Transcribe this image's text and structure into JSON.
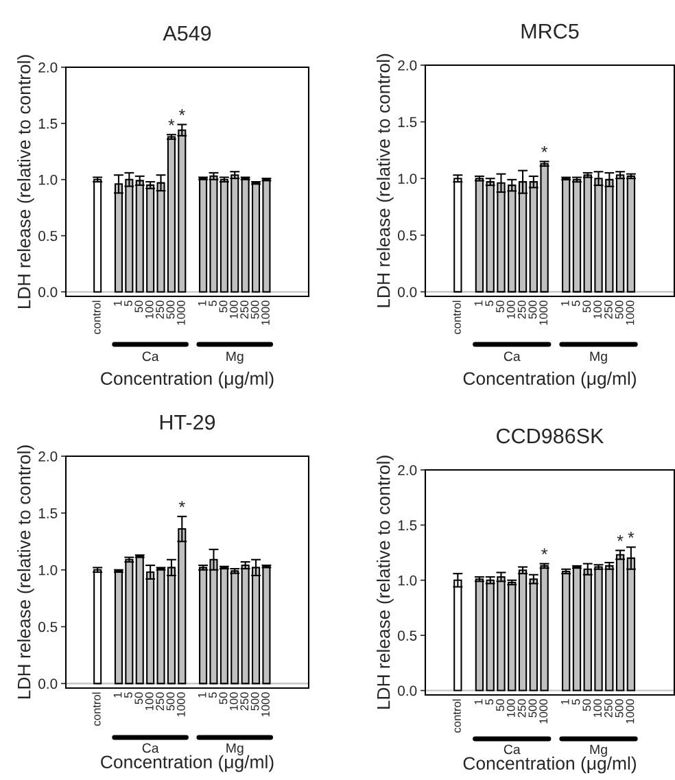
{
  "chart_data": [
    {
      "type": "bar",
      "title": "A549",
      "xlabel": "Concentration (μg/ml)",
      "ylabel": "LDH release (relative to control)",
      "categories": [
        "control",
        null,
        "1",
        "5",
        "50",
        "100",
        "250",
        "500",
        "1000",
        null,
        "1",
        "5",
        "50",
        "100",
        "250",
        "500",
        "1000"
      ],
      "colors": [
        "#ffffff",
        null,
        "#c0c0c0",
        "#c0c0c0",
        "#c0c0c0",
        "#c0c0c0",
        "#c0c0c0",
        "#c0c0c0",
        "#c0c0c0",
        null,
        "#c0c0c0",
        "#c0c0c0",
        "#c0c0c0",
        "#c0c0c0",
        "#c0c0c0",
        "#c0c0c0",
        "#c0c0c0"
      ],
      "values": [
        1.0,
        null,
        0.96,
        1.0,
        0.99,
        0.95,
        0.97,
        1.38,
        1.44,
        null,
        1.01,
        1.03,
        1.0,
        1.04,
        1.01,
        0.97,
        1.0
      ],
      "errors": [
        0.02,
        null,
        0.08,
        0.06,
        0.04,
        0.03,
        0.07,
        0.02,
        0.05,
        null,
        0.01,
        0.03,
        0.02,
        0.03,
        0.01,
        0.01,
        0.01
      ],
      "value_labels": [
        null,
        null,
        null,
        null,
        null,
        null,
        null,
        "*",
        "*",
        null,
        null,
        null,
        null,
        null,
        null,
        null,
        null
      ],
      "annotations": [
        "Ca",
        "Mg"
      ],
      "ylim": [
        -0.04,
        2.0
      ],
      "yticks": [
        {
          "value": 0,
          "label": "0.0"
        },
        {
          "value": 0.5,
          "label": "0.5"
        },
        {
          "value": 1,
          "label": "1.0"
        },
        {
          "value": 1.5,
          "label": "1.5"
        },
        {
          "value": 2,
          "label": "2.0"
        }
      ],
      "ref_lines": [
        {
          "axis": "y",
          "value": 0,
          "color": "#c0c0c0"
        }
      ]
    },
    {
      "type": "bar",
      "title": "MRC5",
      "xlabel": "Concentration (μg/ml)",
      "ylabel": "LDH release (relative to control)",
      "categories": [
        "control",
        null,
        "1",
        "5",
        "50",
        "100",
        "250",
        "500",
        "1000",
        null,
        "1",
        "5",
        "50",
        "100",
        "250",
        "500",
        "1000"
      ],
      "colors": [
        "#ffffff",
        null,
        "#c0c0c0",
        "#c0c0c0",
        "#c0c0c0",
        "#c0c0c0",
        "#c0c0c0",
        "#c0c0c0",
        "#c0c0c0",
        null,
        "#c0c0c0",
        "#c0c0c0",
        "#c0c0c0",
        "#c0c0c0",
        "#c0c0c0",
        "#c0c0c0",
        "#c0c0c0"
      ],
      "values": [
        1.0,
        null,
        1.0,
        0.97,
        0.96,
        0.94,
        0.97,
        0.97,
        1.13,
        null,
        1.0,
        0.99,
        1.03,
        1.0,
        0.99,
        1.03,
        1.02
      ],
      "errors": [
        0.03,
        null,
        0.02,
        0.03,
        0.08,
        0.05,
        0.1,
        0.05,
        0.02,
        null,
        0.01,
        0.02,
        0.02,
        0.06,
        0.06,
        0.03,
        0.02
      ],
      "value_labels": [
        null,
        null,
        null,
        null,
        null,
        null,
        null,
        null,
        "*",
        null,
        null,
        null,
        null,
        null,
        null,
        null,
        null
      ],
      "annotations": [
        "Ca",
        "Mg"
      ],
      "ylim": [
        -0.04,
        2.0
      ],
      "yticks": [
        {
          "value": 0,
          "label": "0.0"
        },
        {
          "value": 0.5,
          "label": "0.5"
        },
        {
          "value": 1,
          "label": "1.0"
        },
        {
          "value": 1.5,
          "label": "1.5"
        },
        {
          "value": 2,
          "label": "2.0"
        }
      ],
      "ref_lines": [
        {
          "axis": "y",
          "value": 0,
          "color": "#c0c0c0"
        }
      ]
    },
    {
      "type": "bar",
      "title": "HT-29",
      "xlabel": "Concentration (μg/ml)",
      "ylabel": "LDH release (relative to control)",
      "categories": [
        "control",
        null,
        "1",
        "5",
        "50",
        "100",
        "250",
        "500",
        "1000",
        null,
        "1",
        "5",
        "50",
        "100",
        "250",
        "500",
        "1000"
      ],
      "colors": [
        "#ffffff",
        null,
        "#c0c0c0",
        "#c0c0c0",
        "#c0c0c0",
        "#c0c0c0",
        "#c0c0c0",
        "#c0c0c0",
        "#c0c0c0",
        null,
        "#c0c0c0",
        "#c0c0c0",
        "#c0c0c0",
        "#c0c0c0",
        "#c0c0c0",
        "#c0c0c0",
        "#c0c0c0"
      ],
      "values": [
        1.0,
        null,
        0.99,
        1.09,
        1.12,
        0.98,
        1.01,
        1.02,
        1.36,
        null,
        1.02,
        1.09,
        1.02,
        0.99,
        1.04,
        1.02,
        1.03
      ],
      "errors": [
        0.02,
        null,
        0.01,
        0.02,
        0.01,
        0.06,
        0.01,
        0.07,
        0.11,
        null,
        0.02,
        0.09,
        0.01,
        0.02,
        0.03,
        0.07,
        0.01
      ],
      "value_labels": [
        null,
        null,
        null,
        null,
        null,
        null,
        null,
        null,
        "*",
        null,
        null,
        null,
        null,
        null,
        null,
        null,
        null
      ],
      "annotations": [
        "Ca",
        "Mg"
      ],
      "ylim": [
        -0.04,
        2.0
      ],
      "yticks": [
        {
          "value": 0,
          "label": "0.0"
        },
        {
          "value": 0.5,
          "label": "0.5"
        },
        {
          "value": 1,
          "label": "1.0"
        },
        {
          "value": 1.5,
          "label": "1.5"
        },
        {
          "value": 2,
          "label": "2.0"
        }
      ],
      "ref_lines": [
        {
          "axis": "y",
          "value": 0,
          "color": "#c0c0c0"
        }
      ]
    },
    {
      "type": "bar",
      "title": "CCD986SK",
      "xlabel": "Concentration (μg/ml)",
      "ylabel": "LDH release (relative to control)",
      "categories": [
        "control",
        null,
        "1",
        "5",
        "50",
        "100",
        "250",
        "500",
        "1000",
        null,
        "1",
        "5",
        "50",
        "100",
        "250",
        "500",
        "1000"
      ],
      "colors": [
        "#ffffff",
        null,
        "#c0c0c0",
        "#c0c0c0",
        "#c0c0c0",
        "#c0c0c0",
        "#c0c0c0",
        "#c0c0c0",
        "#c0c0c0",
        null,
        "#c0c0c0",
        "#c0c0c0",
        "#c0c0c0",
        "#c0c0c0",
        "#c0c0c0",
        "#c0c0c0",
        "#c0c0c0"
      ],
      "values": [
        1.0,
        null,
        1.01,
        1.0,
        1.03,
        0.98,
        1.09,
        1.01,
        1.13,
        null,
        1.08,
        1.12,
        1.1,
        1.12,
        1.13,
        1.23,
        1.2
      ],
      "errors": [
        0.06,
        null,
        0.02,
        0.03,
        0.04,
        0.02,
        0.03,
        0.04,
        0.02,
        null,
        0.02,
        0.01,
        0.05,
        0.02,
        0.03,
        0.04,
        0.1
      ],
      "value_labels": [
        null,
        null,
        null,
        null,
        null,
        null,
        null,
        null,
        "*",
        null,
        null,
        null,
        null,
        null,
        null,
        "*",
        "*"
      ],
      "annotations": [
        "Ca",
        "Mg"
      ],
      "ylim": [
        -0.04,
        2.0
      ],
      "yticks": [
        {
          "value": 0,
          "label": "0.0"
        },
        {
          "value": 0.5,
          "label": "0.5"
        },
        {
          "value": 1,
          "label": "1.0"
        },
        {
          "value": 1.5,
          "label": "1.5"
        },
        {
          "value": 2,
          "label": "2.0"
        }
      ],
      "ref_lines": [
        {
          "axis": "y",
          "value": 0,
          "color": "#c0c0c0"
        }
      ]
    }
  ]
}
